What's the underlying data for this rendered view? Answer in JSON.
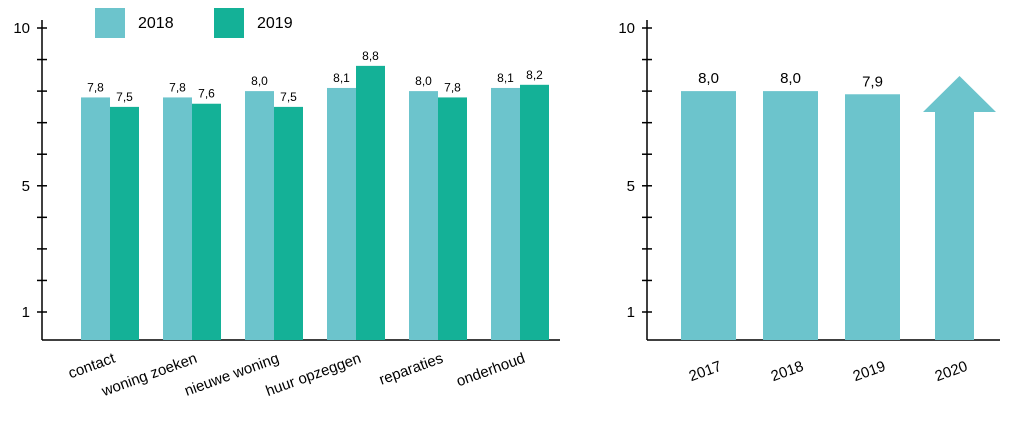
{
  "colors": {
    "series_2018": "#6cc4cc",
    "series_2019": "#14b197",
    "right_bars": "#6cc4cc"
  },
  "legend": [
    {
      "label": "2018",
      "color": "#6cc4cc"
    },
    {
      "label": "2019",
      "color": "#14b197"
    }
  ],
  "chart_data": [
    {
      "type": "bar",
      "categories": [
        "contact",
        "woning zoeken",
        "nieuwe woning",
        "huur opzeggen",
        "reparaties",
        "onderhoud"
      ],
      "series": [
        {
          "name": "2018",
          "values": [
            7.8,
            7.8,
            8.0,
            8.1,
            8.0,
            8.1
          ],
          "labels": [
            "7,8",
            "7,8",
            "8,0",
            "8,1",
            "8,0",
            "8,1"
          ]
        },
        {
          "name": "2019",
          "values": [
            7.5,
            7.6,
            7.5,
            8.8,
            7.8,
            8.2
          ],
          "labels": [
            "7,5",
            "7,6",
            "7,5",
            "8,8",
            "7,8",
            "8,2"
          ]
        }
      ],
      "ylim": [
        0,
        10
      ],
      "yticks": [
        1,
        5,
        10
      ],
      "legend_position": "top-left",
      "grid": false
    },
    {
      "type": "bar",
      "categories": [
        "2017",
        "2018",
        "2019",
        "2020"
      ],
      "values": [
        8.0,
        8.0,
        7.9,
        null
      ],
      "labels": [
        "8,0",
        "8,0",
        "7,9",
        ""
      ],
      "annotations": [
        "upward arrow for 2020"
      ],
      "ylim": [
        0,
        10
      ],
      "yticks": [
        1,
        5,
        10
      ],
      "grid": false
    }
  ]
}
